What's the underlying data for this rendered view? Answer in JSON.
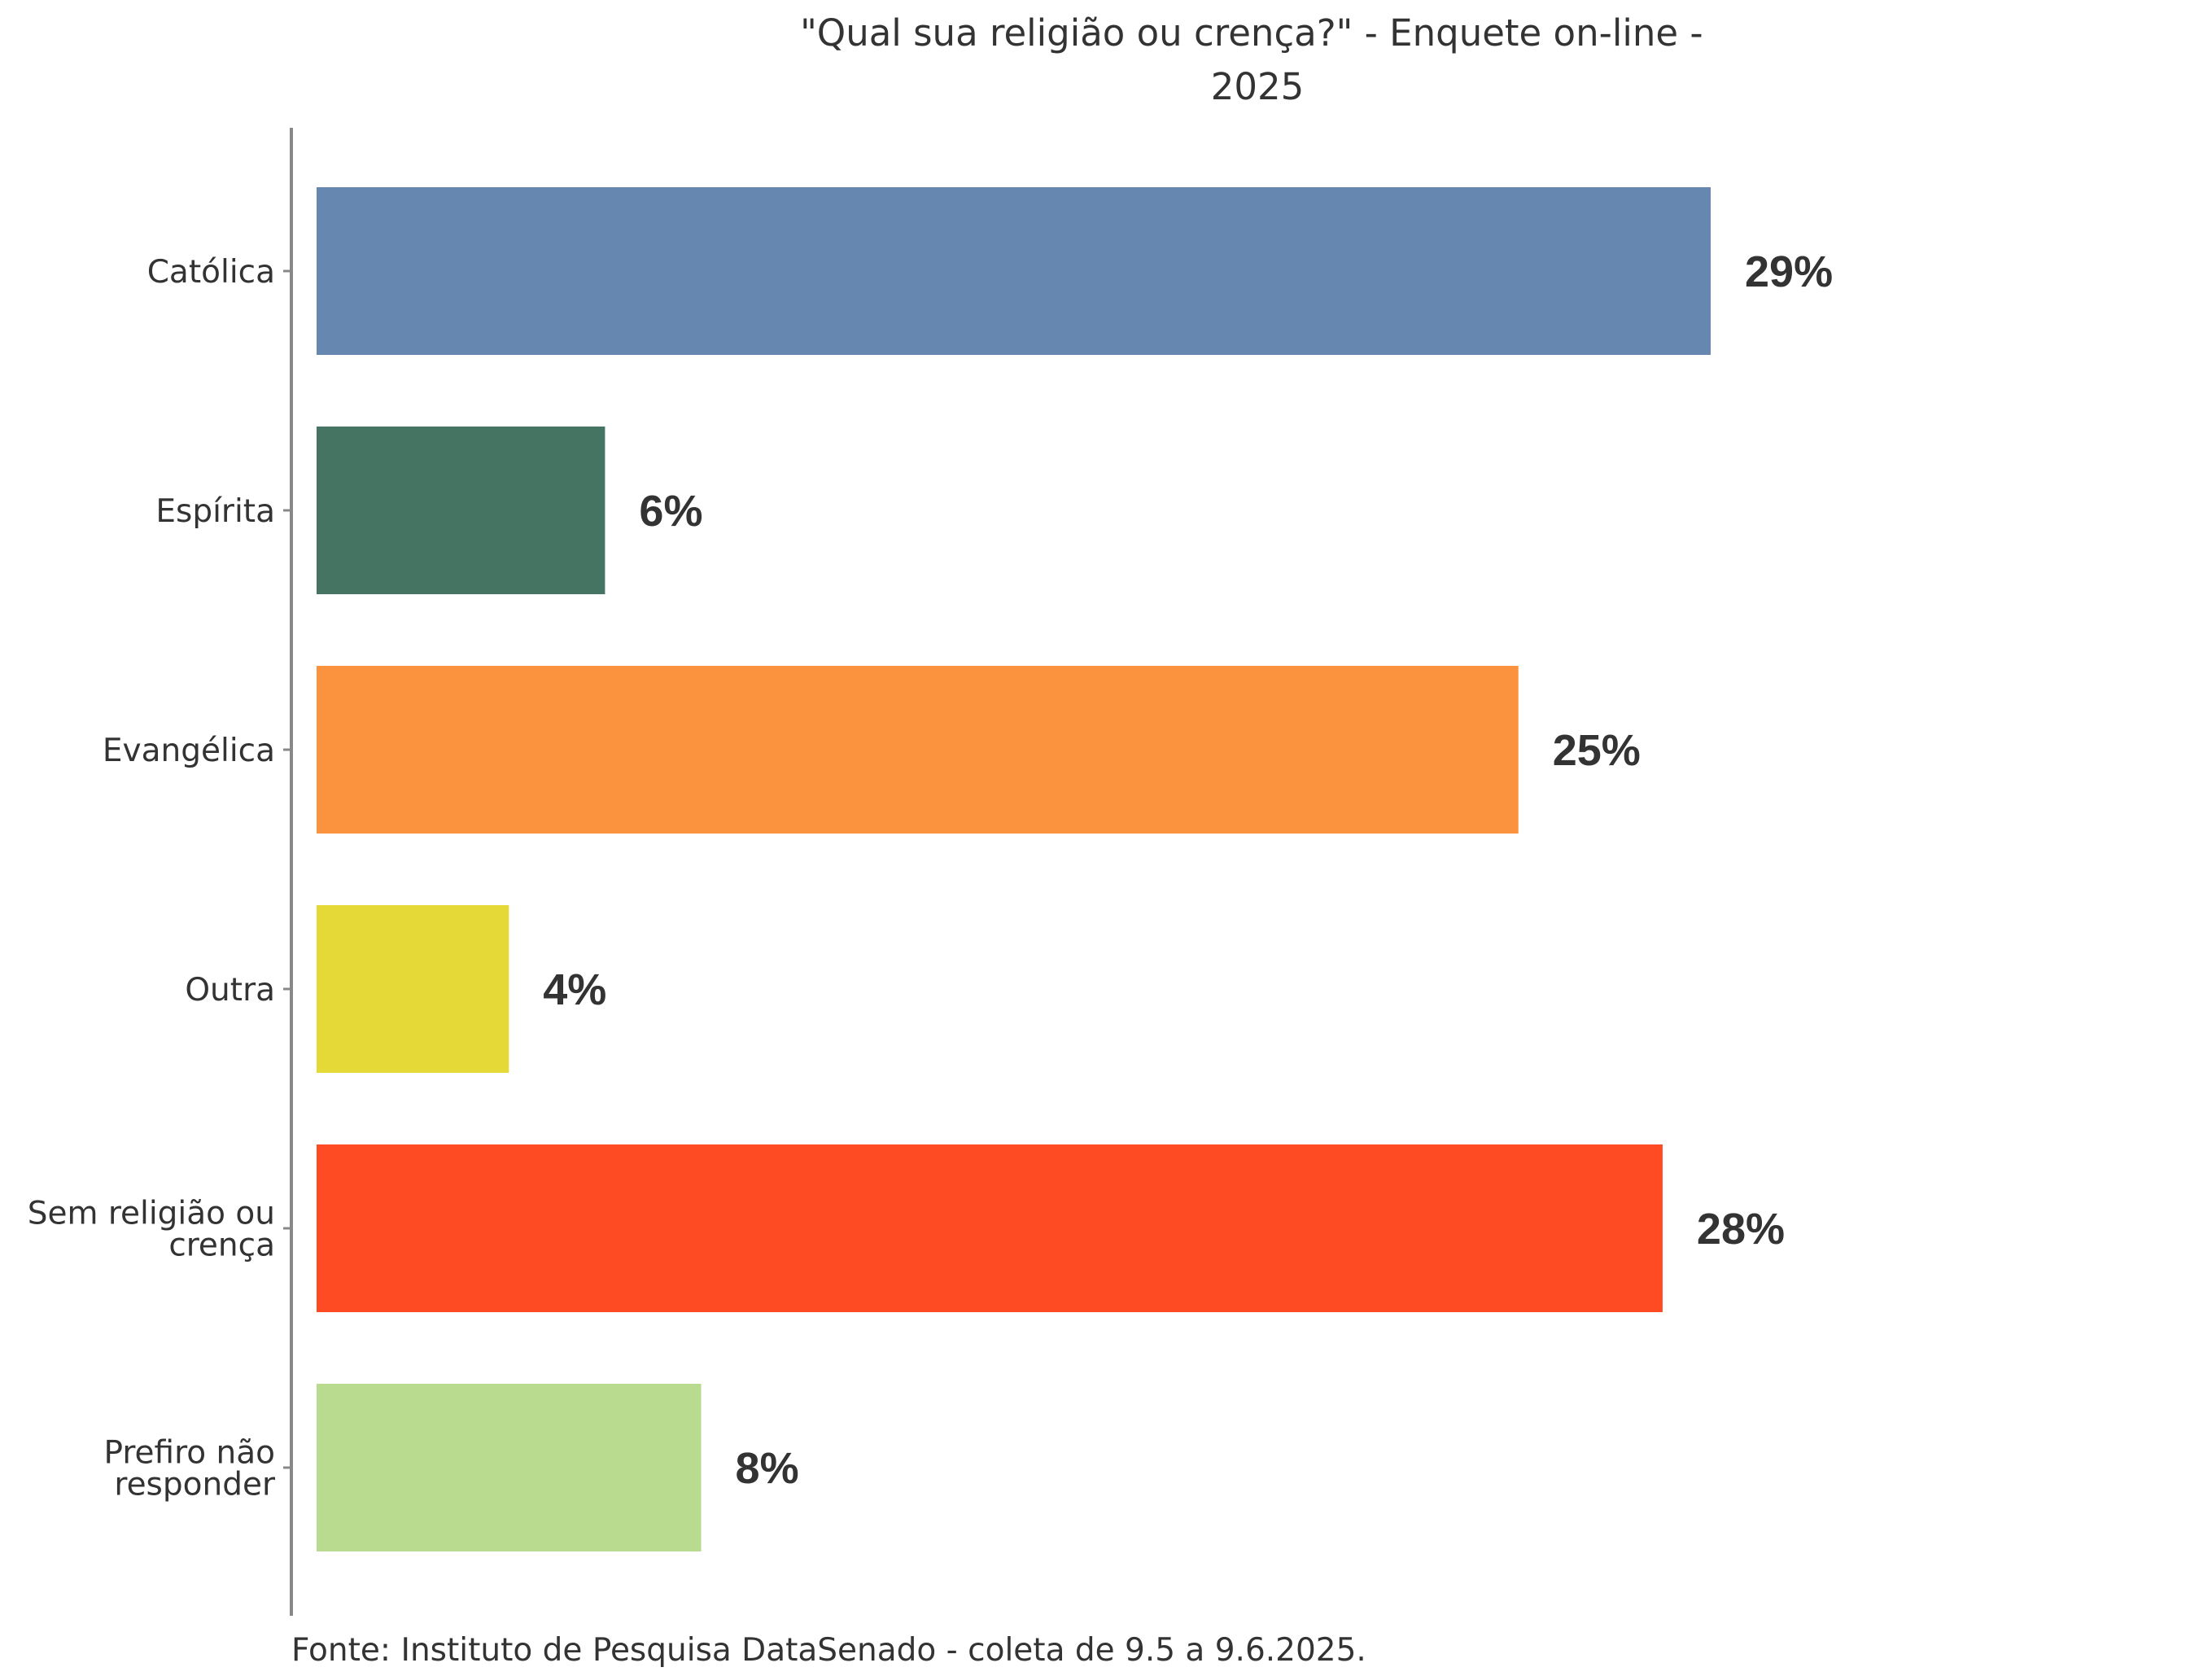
{
  "chart_data": {
    "type": "bar",
    "orientation": "horizontal",
    "title": "\"Qual sua religião ou crença?\" - Enquete on-line - 2025",
    "title_lines": [
      "\"Qual sua religião ou crença?\" - Enquete on-line -",
      "2025"
    ],
    "categories": [
      "Católica",
      "Espírita",
      "Evangélica",
      "Outra",
      "Sem religião ou crença",
      "Prefiro não responder"
    ],
    "category_lines": [
      [
        "Católica"
      ],
      [
        "Espírita"
      ],
      [
        "Evangélica"
      ],
      [
        "Outra"
      ],
      [
        "Sem religião ou",
        "crença"
      ],
      [
        "Prefiro não",
        "responder"
      ]
    ],
    "values": [
      29,
      6,
      25,
      4,
      28,
      8
    ],
    "value_labels": [
      "29%",
      "6%",
      "25%",
      "4%",
      "28%",
      "8%"
    ],
    "colors": [
      "#6688b0",
      "#467463",
      "#fa923e",
      "#e5d937",
      "#ff4b23",
      "#b8db90"
    ],
    "xlim": [
      0,
      29
    ],
    "xlabel": "",
    "ylabel": "",
    "grid": false,
    "legend": "none",
    "source": "Fonte: Instituto de Pesquisa DataSenado - coleta de 9.5 a 9.6.2025."
  }
}
